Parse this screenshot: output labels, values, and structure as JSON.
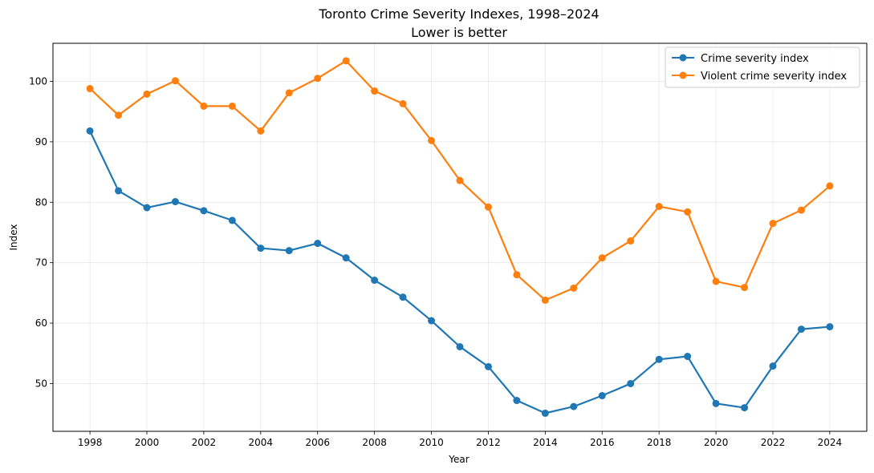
{
  "chart_data": {
    "type": "line",
    "title": "Toronto Crime Severity Indexes, 1998–2024",
    "subtitle": "Lower is better",
    "xlabel": "Year",
    "ylabel": "Index",
    "xlim": [
      1996.7,
      2025.3
    ],
    "ylim": [
      42.1,
      106.3
    ],
    "x_ticks": [
      1998,
      2000,
      2002,
      2004,
      2006,
      2008,
      2010,
      2012,
      2014,
      2016,
      2018,
      2020,
      2022,
      2024
    ],
    "y_ticks": [
      50,
      60,
      70,
      80,
      90,
      100
    ],
    "grid": true,
    "legend_position": "top-right",
    "x": [
      1998,
      1999,
      2000,
      2001,
      2002,
      2003,
      2004,
      2005,
      2006,
      2007,
      2008,
      2009,
      2010,
      2011,
      2012,
      2013,
      2014,
      2015,
      2016,
      2017,
      2018,
      2019,
      2020,
      2021,
      2022,
      2023,
      2024
    ],
    "series": [
      {
        "name": "Crime severity index",
        "color": "#1f77b4",
        "values": [
          91.8,
          81.9,
          79.1,
          80.1,
          78.6,
          77.0,
          72.4,
          72.0,
          73.2,
          70.8,
          67.1,
          64.3,
          60.4,
          56.1,
          52.8,
          47.2,
          45.1,
          46.2,
          48.0,
          50.0,
          54.0,
          54.5,
          46.7,
          46.0,
          52.9,
          59.0,
          59.4
        ]
      },
      {
        "name": "Violent crime severity index",
        "color": "#ff7f0e",
        "values": [
          98.8,
          94.4,
          97.9,
          100.1,
          95.9,
          95.9,
          91.8,
          98.1,
          100.5,
          103.4,
          98.4,
          96.3,
          90.2,
          83.6,
          79.2,
          68.0,
          63.8,
          65.8,
          70.8,
          73.6,
          79.3,
          78.4,
          66.9,
          65.9,
          76.5,
          78.7,
          82.7
        ]
      }
    ]
  }
}
